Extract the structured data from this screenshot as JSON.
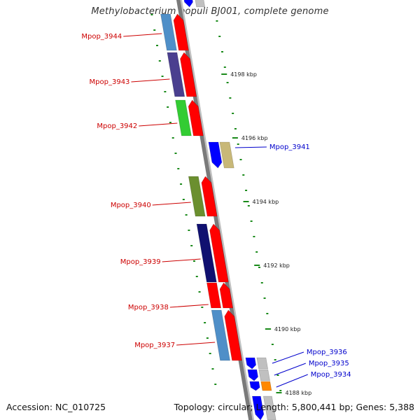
{
  "title": "Methylobacterium populi BJ001, complete genome",
  "footer": {
    "accession": "Accession: NC_010725",
    "summary": "Topology: circular; Length: 5,800,441 bp; Genes: 5,388"
  },
  "colors": {
    "forward_label": "#cc0000",
    "reverse_label": "#0000cc",
    "tick": "#1a8a1a",
    "backbone": "#8a8a8a"
  },
  "kbp_ticks": [
    {
      "label": "4198 kbp"
    },
    {
      "label": "4196 kbp"
    },
    {
      "label": "4194 kbp"
    },
    {
      "label": "4192 kbp"
    },
    {
      "label": "4190 kbp"
    },
    {
      "label": "4188 kbp"
    }
  ],
  "genes": [
    {
      "name": "Mpop_3944",
      "strand": "forward",
      "cog_color": "#4f8fc8"
    },
    {
      "name": "Mpop_3943",
      "strand": "forward",
      "cog_color": "#4a3f8f"
    },
    {
      "name": "Mpop_3942",
      "strand": "forward",
      "cog_color": "#33cc33"
    },
    {
      "name": "Mpop_3941",
      "strand": "reverse",
      "cog_color": "#c8b878"
    },
    {
      "name": "Mpop_3940",
      "strand": "forward",
      "cog_color": "#6b8f2f"
    },
    {
      "name": "Mpop_3939",
      "strand": "forward",
      "cog_color": "#101070"
    },
    {
      "name": "Mpop_3938",
      "strand": "forward",
      "cog_color": "#ff0000"
    },
    {
      "name": "Mpop_3937",
      "strand": "forward",
      "cog_color": "#4f8fc8"
    },
    {
      "name": "Mpop_3936",
      "strand": "reverse",
      "cog_color": "#c0c0c0"
    },
    {
      "name": "Mpop_3935",
      "strand": "reverse",
      "cog_color": "#c0c0c0"
    },
    {
      "name": "Mpop_3934",
      "strand": "reverse",
      "cog_color": "#ff8800"
    }
  ]
}
